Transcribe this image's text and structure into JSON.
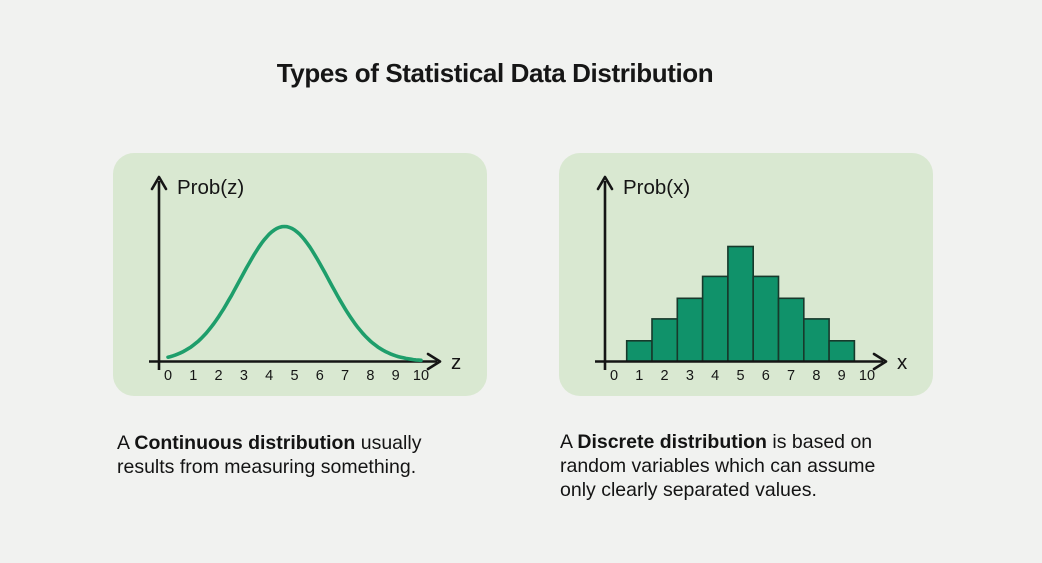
{
  "title": "Types of Statistical Data Distribution",
  "colors": {
    "page_background": "#f1f2f0",
    "panel_background": "#d9e8d1",
    "axis": "#151515",
    "curve_line": "#1e9e6b",
    "bar_fill": "#10926a",
    "bar_stroke": "#17392b",
    "text": "#141414"
  },
  "chart_data": [
    {
      "type": "line",
      "title": "Continuous distribution (bell curve)",
      "ylabel": "Prob(z)",
      "xlabel": "z",
      "x_ticks": [
        "0",
        "1",
        "2",
        "3",
        "4",
        "5",
        "6",
        "7",
        "8",
        "9",
        "10"
      ],
      "xlim": [
        0,
        10
      ],
      "ylim_relative": [
        0,
        1
      ],
      "grid": false,
      "legend": "none",
      "curve": {
        "shape": "gaussian",
        "mean": 4.6,
        "sd": 1.75,
        "peak_relative": 1.0
      },
      "line_color": "#1e9e6b"
    },
    {
      "type": "bar",
      "title": "Discrete distribution (histogram)",
      "ylabel": "Prob(x)",
      "xlabel": "x",
      "x_ticks": [
        "0",
        "1",
        "2",
        "3",
        "4",
        "5",
        "6",
        "7",
        "8",
        "9",
        "10"
      ],
      "xlim": [
        0,
        10
      ],
      "ylim_relative": [
        0,
        1
      ],
      "grid": false,
      "legend": "none",
      "categories": [
        1,
        2,
        3,
        4,
        5,
        6,
        7,
        8,
        9
      ],
      "values": [
        0.18,
        0.37,
        0.55,
        0.74,
        1.0,
        0.74,
        0.55,
        0.37,
        0.18
      ],
      "bar_fill": "#10926a",
      "bar_stroke": "#17392b"
    }
  ],
  "captions": [
    {
      "lines": [
        [
          {
            "t": "A "
          },
          {
            "t": "Continuous distribution",
            "b": true
          },
          {
            "t": " usually"
          }
        ],
        [
          {
            "t": "results from measuring something."
          }
        ]
      ]
    },
    {
      "lines": [
        [
          {
            "t": "A "
          },
          {
            "t": "Discrete distribution",
            "b": true
          },
          {
            "t": " is based on"
          }
        ],
        [
          {
            "t": "random variables which can assume"
          }
        ],
        [
          {
            "t": "only clearly separated values."
          }
        ]
      ]
    }
  ]
}
